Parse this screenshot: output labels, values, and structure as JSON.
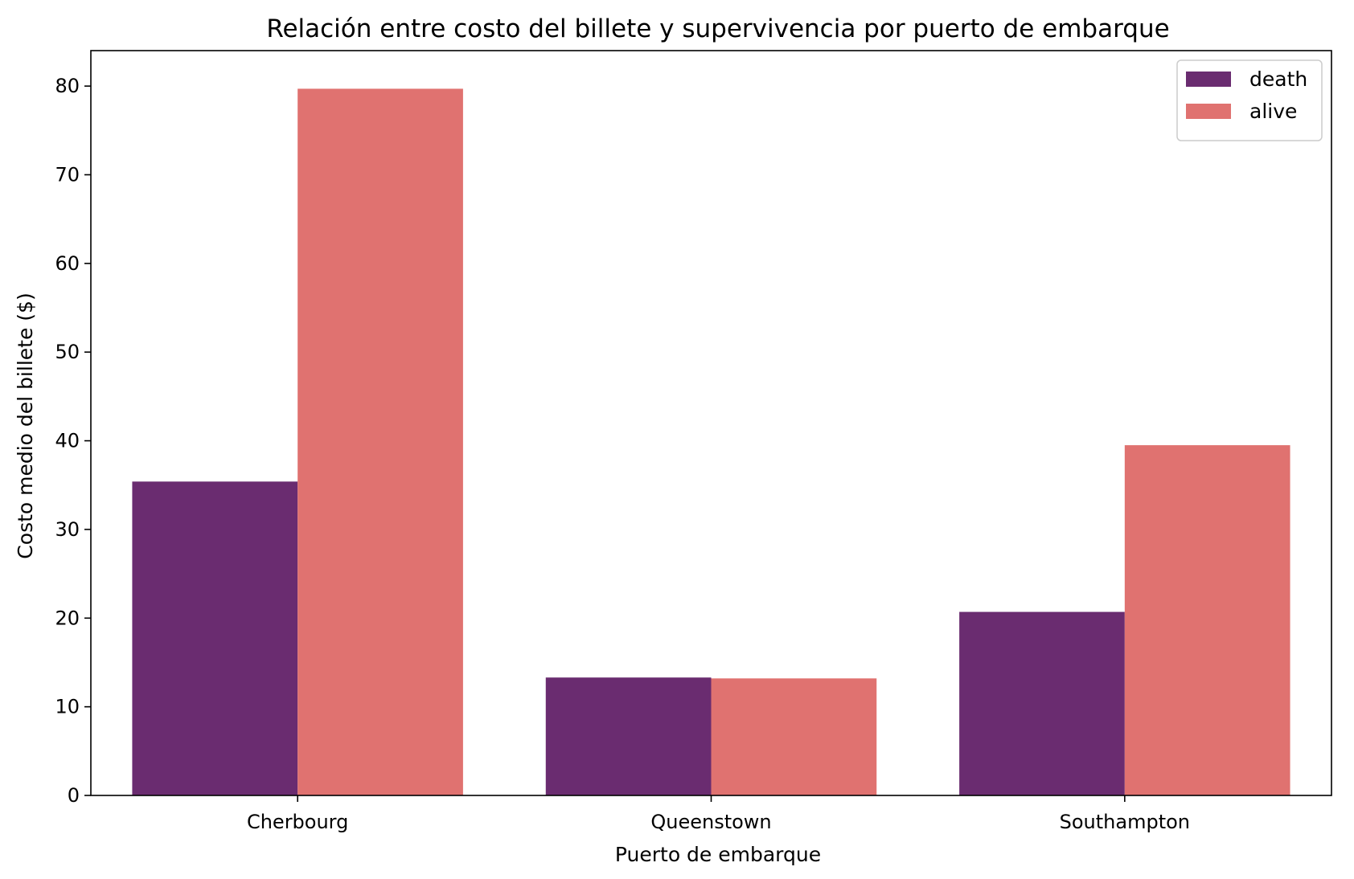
{
  "chart_data": {
    "type": "bar",
    "title": "Relación entre costo del billete y supervivencia por puerto de embarque",
    "xlabel": "Puerto de embarque",
    "ylabel": "Costo medio del billete ($)",
    "categories": [
      "Cherbourg",
      "Queenstown",
      "Southampton"
    ],
    "series": [
      {
        "name": "death",
        "color": "#6a2c70",
        "values": [
          35.4,
          13.3,
          20.7
        ]
      },
      {
        "name": "alive",
        "color": "#e07270",
        "values": [
          79.7,
          13.2,
          39.5
        ]
      }
    ],
    "ylim": [
      0,
      84
    ],
    "yticks": [
      0,
      10,
      20,
      30,
      40,
      50,
      60,
      70,
      80
    ],
    "grid": false,
    "legend_position": "top-right"
  }
}
